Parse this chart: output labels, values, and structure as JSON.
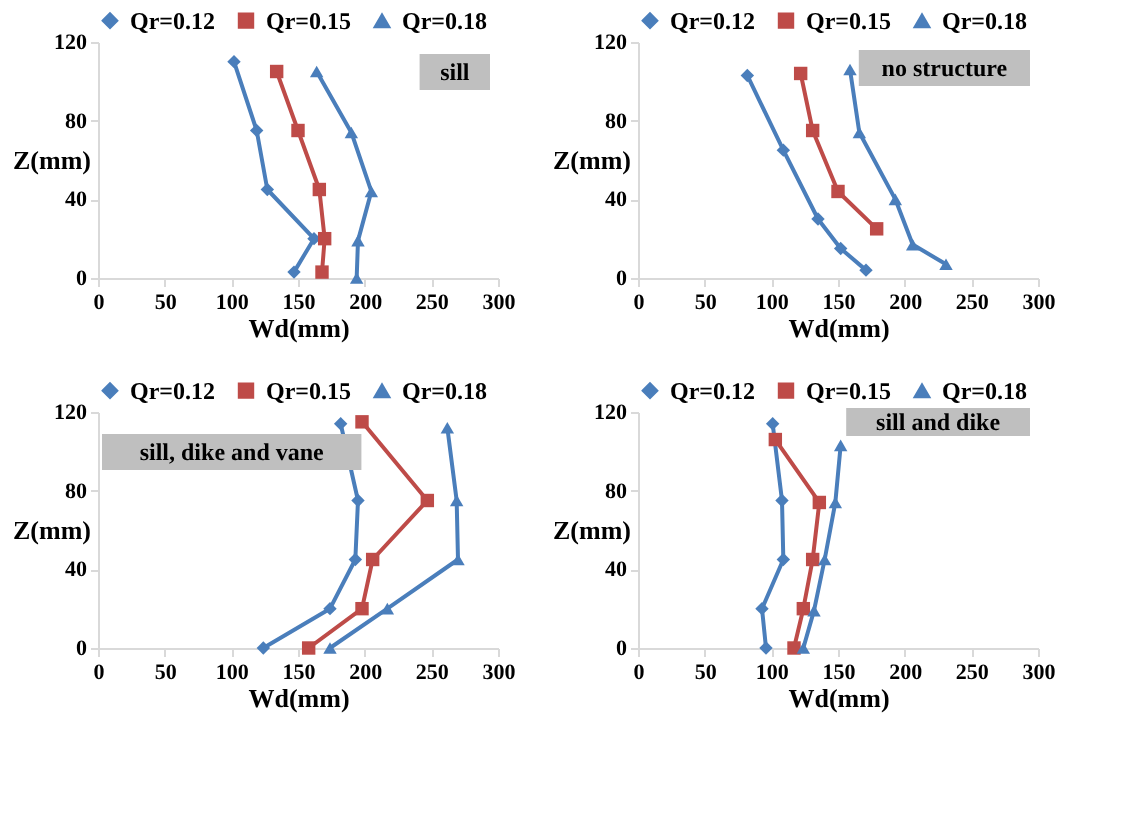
{
  "chart_data": [
    {
      "type": "line",
      "annotations": [
        "sill"
      ],
      "xlabel": "Wd(mm)",
      "ylabel": "Z(mm)",
      "xlim": [
        0,
        300
      ],
      "xticks": [
        0,
        50,
        100,
        150,
        200,
        250,
        300
      ],
      "ylim": [
        0,
        120
      ],
      "yticks": [
        0,
        40,
        80,
        120
      ],
      "legend": "top",
      "series": [
        {
          "name": "Qr=0.12",
          "color": "#4a7ebb",
          "marker": "diamond",
          "x": [
            102,
            119,
            127,
            162,
            147
          ],
          "values": [
            110,
            75,
            45,
            20,
            3
          ]
        },
        {
          "name": "Qr=0.15",
          "color": "#be4b48",
          "marker": "square",
          "x": [
            134,
            150,
            166,
            170,
            168
          ],
          "values": [
            105,
            75,
            45,
            20,
            3
          ]
        },
        {
          "name": "Qr=0.18",
          "color": "#4a7ebb",
          "marker": "triangle",
          "x": [
            164,
            190,
            205,
            195,
            194
          ],
          "values": [
            105,
            74,
            44,
            19,
            0
          ]
        }
      ]
    },
    {
      "type": "line",
      "annotations": [
        "no structure"
      ],
      "xlabel": "Wd(mm)",
      "ylabel": "Z(mm)",
      "xlim": [
        0,
        300
      ],
      "xticks": [
        0,
        50,
        100,
        150,
        200,
        250,
        300
      ],
      "ylim": [
        0,
        120
      ],
      "yticks": [
        0,
        40,
        80,
        120
      ],
      "legend": "top",
      "series": [
        {
          "name": "Qr=0.12",
          "color": "#4a7ebb",
          "marker": "diamond",
          "x": [
            82,
            109,
            135,
            152,
            171
          ],
          "values": [
            103,
            65,
            30,
            15,
            4
          ]
        },
        {
          "name": "Qr=0.15",
          "color": "#be4b48",
          "marker": "square",
          "x": [
            122,
            131,
            150,
            179
          ],
          "values": [
            104,
            75,
            44,
            25
          ]
        },
        {
          "name": "Qr=0.18",
          "color": "#4a7ebb",
          "marker": "triangle",
          "x": [
            159,
            166,
            193,
            206,
            231
          ],
          "values": [
            106,
            74,
            40,
            17,
            7
          ]
        }
      ]
    },
    {
      "type": "line",
      "annotations": [
        "sill, dike and vane"
      ],
      "xlabel": "Wd(mm)",
      "ylabel": "Z(mm)",
      "xlim": [
        0,
        300
      ],
      "xticks": [
        0,
        50,
        100,
        150,
        200,
        250,
        300
      ],
      "ylim": [
        0,
        120
      ],
      "yticks": [
        0,
        40,
        80,
        120
      ],
      "legend": "top",
      "series": [
        {
          "name": "Qr=0.12",
          "color": "#4a7ebb",
          "marker": "diamond",
          "x": [
            182,
            195,
            193,
            174,
            124
          ],
          "values": [
            114,
            75,
            45,
            20,
            0
          ]
        },
        {
          "name": "Qr=0.15",
          "color": "#be4b48",
          "marker": "square",
          "x": [
            198,
            247,
            206,
            198,
            158
          ],
          "values": [
            115,
            75,
            45,
            20,
            0
          ]
        },
        {
          "name": "Qr=0.18",
          "color": "#4a7ebb",
          "marker": "triangle",
          "x": [
            262,
            269,
            270,
            217,
            174
          ],
          "values": [
            112,
            75,
            45,
            20,
            0
          ]
        }
      ]
    },
    {
      "type": "line",
      "annotations": [
        "sill and dike"
      ],
      "xlabel": "Wd(mm)",
      "ylabel": "Z(mm)",
      "xlim": [
        0,
        300
      ],
      "xticks": [
        0,
        50,
        100,
        150,
        200,
        250,
        300
      ],
      "ylim": [
        0,
        120
      ],
      "yticks": [
        0,
        40,
        80,
        120
      ],
      "legend": "top",
      "series": [
        {
          "name": "Qr=0.12",
          "color": "#4a7ebb",
          "marker": "diamond",
          "x": [
            101,
            108,
            109,
            93,
            96
          ],
          "values": [
            114,
            75,
            45,
            20,
            0
          ]
        },
        {
          "name": "Qr=0.15",
          "color": "#be4b48",
          "marker": "square",
          "x": [
            103,
            136,
            131,
            124,
            117
          ],
          "values": [
            106,
            74,
            45,
            20,
            0
          ]
        },
        {
          "name": "Qr=0.18",
          "color": "#4a7ebb",
          "marker": "triangle",
          "x": [
            152,
            148,
            140,
            132,
            124
          ],
          "values": [
            103,
            74,
            45,
            19,
            0
          ]
        }
      ]
    }
  ]
}
